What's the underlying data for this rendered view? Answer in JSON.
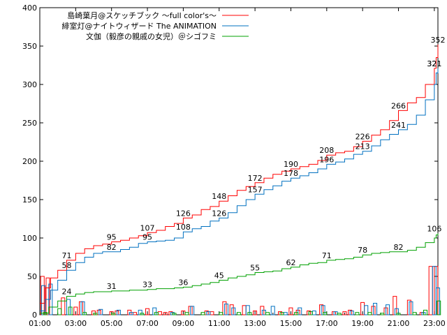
{
  "chart_data": {
    "type": "line",
    "title": "",
    "xlabel": "",
    "ylabel": "",
    "ylim": [
      0,
      400
    ],
    "yticks": [
      "0",
      "50",
      "100",
      "150",
      "200",
      "250",
      "300",
      "350",
      "400"
    ],
    "xticks": [
      "01:00",
      "03:00",
      "05:00",
      "07:00",
      "09:00",
      "11:00",
      "13:00",
      "15:00",
      "17:00",
      "19:00",
      "21:00",
      "23:00"
    ],
    "xlim_hours": [
      1,
      23.2
    ],
    "grid": false,
    "legend_position": "top-right",
    "series": [
      {
        "name": "島崎葉月@スケッチブック ～full color's～",
        "color": "#ff0000",
        "points": [
          [
            1,
            15
          ],
          [
            1.3,
            35
          ],
          [
            1.6,
            48
          ],
          [
            2,
            58
          ],
          [
            2.5,
            71
          ],
          [
            3,
            80
          ],
          [
            3.5,
            86
          ],
          [
            4,
            90
          ],
          [
            4.5,
            92
          ],
          [
            5,
            95
          ],
          [
            5.5,
            97
          ],
          [
            6,
            100
          ],
          [
            6.5,
            103
          ],
          [
            7,
            107
          ],
          [
            7.5,
            110
          ],
          [
            8,
            115
          ],
          [
            8.5,
            119
          ],
          [
            9,
            126
          ],
          [
            9.5,
            130
          ],
          [
            10,
            137
          ],
          [
            10.5,
            141
          ],
          [
            11,
            148
          ],
          [
            11.5,
            155
          ],
          [
            12,
            162
          ],
          [
            12.5,
            167
          ],
          [
            13,
            172
          ],
          [
            13.5,
            178
          ],
          [
            14,
            183
          ],
          [
            14.5,
            187
          ],
          [
            15,
            190
          ],
          [
            15.5,
            193
          ],
          [
            16,
            196
          ],
          [
            16.5,
            201
          ],
          [
            17,
            208
          ],
          [
            17.5,
            211
          ],
          [
            18,
            213
          ],
          [
            18.5,
            219
          ],
          [
            19,
            226
          ],
          [
            19.5,
            234
          ],
          [
            20,
            241
          ],
          [
            20.5,
            253
          ],
          [
            21,
            266
          ],
          [
            21.5,
            276
          ],
          [
            22,
            283
          ],
          [
            22.5,
            300
          ],
          [
            23,
            321
          ],
          [
            23.1,
            335
          ],
          [
            23.2,
            352
          ]
        ],
        "labels": [
          [
            2.5,
            71
          ],
          [
            5,
            95
          ],
          [
            7,
            107
          ],
          [
            9,
            126
          ],
          [
            11,
            148
          ],
          [
            13,
            172
          ],
          [
            15,
            190
          ],
          [
            17,
            208
          ],
          [
            19,
            226
          ],
          [
            21,
            266
          ],
          [
            23,
            321
          ],
          [
            23.2,
            352
          ]
        ]
      },
      {
        "name": "緋室灯@ナイトウィザード The ANIMATION",
        "color": "#0070c0",
        "points": [
          [
            1,
            5
          ],
          [
            1.3,
            20
          ],
          [
            1.6,
            32
          ],
          [
            2,
            45
          ],
          [
            2.5,
            58
          ],
          [
            3,
            68
          ],
          [
            3.5,
            75
          ],
          [
            4,
            80
          ],
          [
            4.5,
            82
          ],
          [
            5,
            82
          ],
          [
            5.5,
            85
          ],
          [
            6,
            88
          ],
          [
            6.5,
            93
          ],
          [
            7,
            95
          ],
          [
            7.5,
            96
          ],
          [
            8,
            97
          ],
          [
            8.5,
            100
          ],
          [
            9,
            108
          ],
          [
            9.5,
            112
          ],
          [
            10,
            115
          ],
          [
            10.5,
            122
          ],
          [
            11,
            126
          ],
          [
            11.5,
            133
          ],
          [
            12,
            142
          ],
          [
            12.5,
            150
          ],
          [
            13,
            157
          ],
          [
            13.5,
            163
          ],
          [
            14,
            168
          ],
          [
            14.5,
            174
          ],
          [
            15,
            178
          ],
          [
            15.5,
            181
          ],
          [
            16,
            185
          ],
          [
            16.5,
            190
          ],
          [
            17,
            196
          ],
          [
            17.5,
            199
          ],
          [
            18,
            203
          ],
          [
            18.5,
            209
          ],
          [
            19,
            213
          ],
          [
            19.5,
            220
          ],
          [
            20,
            228
          ],
          [
            20.5,
            235
          ],
          [
            21,
            241
          ],
          [
            21.5,
            248
          ],
          [
            22,
            260
          ],
          [
            22.5,
            280
          ],
          [
            23,
            300
          ],
          [
            23.1,
            315
          ],
          [
            23.2,
            321
          ]
        ],
        "labels": [
          [
            2.5,
            58
          ],
          [
            5,
            82
          ],
          [
            7,
            95
          ],
          [
            9,
            108
          ],
          [
            11,
            126
          ],
          [
            13,
            157
          ],
          [
            15,
            178
          ],
          [
            17,
            196
          ],
          [
            19,
            213
          ],
          [
            21,
            241
          ],
          [
            23,
            321
          ]
        ]
      },
      {
        "name": "文伽（毅彦の親戚の女児）＠シゴフミ",
        "color": "#00a000",
        "points": [
          [
            1,
            2
          ],
          [
            1.5,
            10
          ],
          [
            2,
            18
          ],
          [
            2.5,
            24
          ],
          [
            3,
            27
          ],
          [
            3.5,
            29
          ],
          [
            4,
            30
          ],
          [
            4.5,
            30
          ],
          [
            5,
            31
          ],
          [
            5.5,
            31
          ],
          [
            6,
            32
          ],
          [
            6.5,
            32
          ],
          [
            7,
            33
          ],
          [
            7.5,
            34
          ],
          [
            8,
            34
          ],
          [
            8.5,
            35
          ],
          [
            9,
            36
          ],
          [
            9.5,
            38
          ],
          [
            10,
            40
          ],
          [
            10.5,
            42
          ],
          [
            11,
            45
          ],
          [
            11.5,
            48
          ],
          [
            12,
            50
          ],
          [
            12.5,
            52
          ],
          [
            13,
            55
          ],
          [
            13.5,
            56
          ],
          [
            14,
            57
          ],
          [
            14.5,
            60
          ],
          [
            15,
            62
          ],
          [
            15.5,
            65
          ],
          [
            16,
            67
          ],
          [
            16.5,
            68
          ],
          [
            17,
            71
          ],
          [
            17.5,
            72
          ],
          [
            18,
            73
          ],
          [
            18.5,
            75
          ],
          [
            19,
            78
          ],
          [
            19.5,
            80
          ],
          [
            20,
            81
          ],
          [
            20.5,
            82
          ],
          [
            21,
            82
          ],
          [
            21.5,
            84
          ],
          [
            22,
            88
          ],
          [
            22.5,
            94
          ],
          [
            23,
            100
          ],
          [
            23.1,
            104
          ],
          [
            23.2,
            106
          ]
        ],
        "labels": [
          [
            2.5,
            24
          ],
          [
            5,
            31
          ],
          [
            7,
            33
          ],
          [
            9,
            36
          ],
          [
            11,
            45
          ],
          [
            13,
            55
          ],
          [
            15,
            62
          ],
          [
            17,
            71
          ],
          [
            19,
            78
          ],
          [
            21,
            82
          ],
          [
            23,
            106
          ]
        ]
      }
    ],
    "bar_series": [
      {
        "color": "#ff0000",
        "bars": [
          [
            1.05,
            50
          ],
          [
            1.35,
            48
          ],
          [
            2.2,
            22
          ],
          [
            2.9,
            10
          ],
          [
            3.2,
            17
          ],
          [
            3.9,
            5
          ],
          [
            4.2,
            6
          ],
          [
            4.9,
            4
          ],
          [
            5.2,
            5
          ],
          [
            5.9,
            6
          ],
          [
            6.2,
            3
          ],
          [
            6.9,
            8
          ],
          [
            7.6,
            4
          ],
          [
            7.9,
            3
          ],
          [
            8.2,
            4
          ],
          [
            8.9,
            5
          ],
          [
            9.3,
            11
          ],
          [
            10.2,
            5
          ],
          [
            10.5,
            4
          ],
          [
            11.2,
            17
          ],
          [
            11.6,
            13
          ],
          [
            12.3,
            12
          ],
          [
            12.9,
            5
          ],
          [
            13.3,
            11
          ],
          [
            14.3,
            4
          ],
          [
            14.9,
            9
          ],
          [
            15.3,
            6
          ],
          [
            15.9,
            5
          ],
          [
            16.6,
            13
          ],
          [
            17.3,
            4
          ],
          [
            17.9,
            4
          ],
          [
            18.2,
            6
          ],
          [
            18.9,
            16
          ],
          [
            19.5,
            11
          ],
          [
            20.2,
            9
          ],
          [
            20.7,
            24
          ],
          [
            21.5,
            19
          ],
          [
            22.2,
            3
          ],
          [
            22.7,
            63
          ],
          [
            23.0,
            63
          ]
        ]
      },
      {
        "color": "#0070c0",
        "bars": [
          [
            1.1,
            38
          ],
          [
            1.5,
            40
          ],
          [
            2.5,
            20
          ],
          [
            3.3,
            17
          ],
          [
            4.3,
            7
          ],
          [
            5.3,
            6
          ],
          [
            6.0,
            3
          ],
          [
            6.5,
            6
          ],
          [
            7.3,
            9
          ],
          [
            8.3,
            3
          ],
          [
            9.4,
            11
          ],
          [
            10.3,
            4
          ],
          [
            11.3,
            14
          ],
          [
            11.7,
            9
          ],
          [
            12.5,
            12
          ],
          [
            13.4,
            6
          ],
          [
            13.9,
            11
          ],
          [
            14.6,
            3
          ],
          [
            15.4,
            9
          ],
          [
            16.2,
            5
          ],
          [
            16.7,
            12
          ],
          [
            17.4,
            4
          ],
          [
            18.3,
            5
          ],
          [
            19.1,
            12
          ],
          [
            19.6,
            15
          ],
          [
            20.3,
            13
          ],
          [
            20.8,
            8
          ],
          [
            21.6,
            17
          ],
          [
            22.3,
            3
          ],
          [
            22.9,
            63
          ],
          [
            23.1,
            35
          ]
        ]
      },
      {
        "color": "#00a000",
        "bars": [
          [
            1.2,
            3
          ],
          [
            2.0,
            8
          ],
          [
            2.6,
            10
          ],
          [
            3.4,
            3
          ],
          [
            4.0,
            2
          ],
          [
            5.0,
            2
          ],
          [
            6.6,
            2
          ],
          [
            7.4,
            3
          ],
          [
            8.4,
            2
          ],
          [
            9.1,
            3
          ],
          [
            10.0,
            3
          ],
          [
            11.0,
            3
          ],
          [
            12.0,
            3
          ],
          [
            12.6,
            3
          ],
          [
            13.6,
            3
          ],
          [
            14.4,
            3
          ],
          [
            15.2,
            3
          ],
          [
            16.0,
            4
          ],
          [
            16.8,
            3
          ],
          [
            17.6,
            2
          ],
          [
            18.6,
            3
          ],
          [
            19.3,
            3
          ],
          [
            20.0,
            2
          ],
          [
            20.9,
            2
          ],
          [
            21.8,
            3
          ],
          [
            22.4,
            6
          ],
          [
            23.15,
            18
          ]
        ]
      }
    ]
  }
}
